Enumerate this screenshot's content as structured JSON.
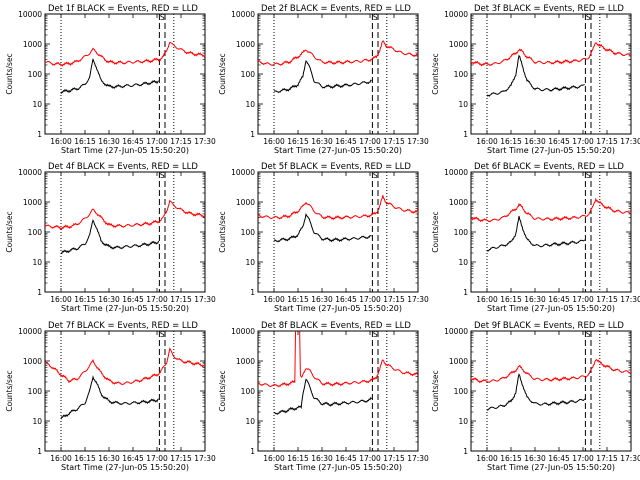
{
  "page": {
    "ylabel": "Counts/sec",
    "xlabel": "Start Time (27-Jun-05 15:50:20)",
    "x_ticks": [
      "16:00",
      "16:15",
      "16:30",
      "16:45",
      "17:00",
      "17:15",
      "17:30"
    ],
    "y_ticks": [
      "1",
      "10",
      "100",
      "1000",
      "10000"
    ],
    "colors": {
      "events": "#000000",
      "lld": "#ff0000",
      "background": "#ffffff"
    }
  },
  "chart_data": [
    {
      "type": "line",
      "detector": "1f",
      "title": "Det 1f BLACK = Events, RED = LLD",
      "xlabel": "Start Time (27-Jun-05 15:50:20)",
      "ylabel": "Counts/sec",
      "ylog": true,
      "ylim": [
        1,
        10000
      ],
      "xlim_min": [
        0,
        100
      ],
      "marker_label": "S",
      "dotted_lines_min": [
        10,
        80.5
      ],
      "dashed_lines_min": [
        71.5,
        75
      ],
      "series": [
        {
          "name": "Events",
          "color": "#000000",
          "x_min": [
            10,
            15,
            20,
            25,
            28,
            30,
            32,
            35,
            40,
            45,
            50,
            55,
            60,
            65,
            70,
            71
          ],
          "y": [
            25,
            28,
            32,
            45,
            80,
            300,
            180,
            60,
            38,
            38,
            40,
            42,
            45,
            50,
            55,
            60
          ]
        },
        {
          "name": "LLD",
          "color": "#ff0000",
          "x_min": [
            0,
            5,
            10,
            15,
            20,
            25,
            28,
            30,
            32,
            35,
            40,
            45,
            50,
            55,
            60,
            65,
            70,
            72,
            74,
            76,
            78,
            80,
            85,
            90,
            95,
            100
          ],
          "y": [
            260,
            220,
            210,
            220,
            260,
            380,
            500,
            650,
            550,
            380,
            250,
            240,
            240,
            250,
            260,
            270,
            300,
            320,
            380,
            600,
            1200,
            900,
            650,
            500,
            450,
            420
          ]
        }
      ]
    },
    {
      "type": "line",
      "detector": "2f",
      "title": "Det 2f BLACK = Events, RED = LLD",
      "xlabel": "Start Time (27-Jun-05 15:50:20)",
      "ylabel": "Counts/sec",
      "ylog": true,
      "ylim": [
        1,
        10000
      ],
      "xlim_min": [
        0,
        100
      ],
      "marker_label": "S",
      "dotted_lines_min": [
        10,
        80.5
      ],
      "dashed_lines_min": [
        71.5,
        75
      ],
      "series": [
        {
          "name": "Events",
          "color": "#000000",
          "x_min": [
            10,
            15,
            20,
            25,
            28,
            30,
            32,
            35,
            40,
            45,
            50,
            55,
            60,
            65,
            70,
            71
          ],
          "y": [
            25,
            28,
            32,
            45,
            80,
            300,
            180,
            60,
            38,
            38,
            40,
            42,
            45,
            50,
            55,
            60
          ]
        },
        {
          "name": "LLD",
          "color": "#ff0000",
          "x_min": [
            0,
            5,
            10,
            15,
            20,
            25,
            28,
            30,
            32,
            35,
            40,
            45,
            50,
            55,
            60,
            65,
            70,
            72,
            74,
            76,
            78,
            80,
            85,
            90,
            95,
            100
          ],
          "y": [
            260,
            220,
            210,
            220,
            260,
            380,
            500,
            650,
            550,
            380,
            250,
            240,
            240,
            250,
            260,
            270,
            300,
            320,
            380,
            600,
            1200,
            900,
            650,
            500,
            450,
            420
          ]
        }
      ]
    },
    {
      "type": "line",
      "detector": "3f",
      "title": "Det 3f BLACK = Events, RED = LLD",
      "xlabel": "Start Time (27-Jun-05 15:50:20)",
      "ylabel": "Counts/sec",
      "ylog": true,
      "ylim": [
        1,
        10000
      ],
      "xlim_min": [
        0,
        100
      ],
      "marker_label": "S",
      "dotted_lines_min": [
        10,
        80.5
      ],
      "dashed_lines_min": [
        71.5,
        75
      ],
      "series": [
        {
          "name": "Events",
          "color": "#000000",
          "x_min": [
            10,
            15,
            20,
            25,
            28,
            30,
            32,
            35,
            40,
            45,
            50,
            55,
            60,
            65,
            70,
            71
          ],
          "y": [
            20,
            22,
            25,
            40,
            100,
            400,
            200,
            60,
            32,
            30,
            30,
            32,
            34,
            36,
            40,
            45
          ]
        },
        {
          "name": "LLD",
          "color": "#ff0000",
          "x_min": [
            0,
            5,
            10,
            15,
            20,
            25,
            28,
            30,
            32,
            35,
            40,
            45,
            50,
            55,
            60,
            65,
            70,
            72,
            74,
            76,
            78,
            80,
            85,
            90,
            95,
            100
          ],
          "y": [
            260,
            220,
            210,
            220,
            260,
            380,
            500,
            650,
            550,
            380,
            250,
            240,
            240,
            250,
            260,
            270,
            300,
            320,
            380,
            600,
            1200,
            900,
            650,
            500,
            450,
            420
          ]
        }
      ]
    },
    {
      "type": "line",
      "detector": "4f",
      "title": "Det 4f BLACK = Events, RED = LLD",
      "xlabel": "Start Time (27-Jun-05 15:50:20)",
      "ylabel": "Counts/sec",
      "ylog": true,
      "ylim": [
        1,
        10000
      ],
      "xlim_min": [
        0,
        100
      ],
      "marker_label": "S",
      "dotted_lines_min": [
        10,
        80.5
      ],
      "dashed_lines_min": [
        71.5,
        75
      ],
      "series": [
        {
          "name": "Events",
          "color": "#000000",
          "x_min": [
            10,
            15,
            20,
            25,
            28,
            30,
            32,
            35,
            40,
            45,
            50,
            55,
            60,
            65,
            70,
            71
          ],
          "y": [
            20,
            24,
            28,
            40,
            80,
            250,
            150,
            50,
            32,
            30,
            32,
            34,
            36,
            40,
            45,
            50
          ]
        },
        {
          "name": "LLD",
          "color": "#ff0000",
          "x_min": [
            0,
            5,
            10,
            15,
            20,
            25,
            28,
            30,
            32,
            35,
            40,
            45,
            50,
            55,
            60,
            65,
            70,
            72,
            74,
            76,
            78,
            80,
            85,
            90,
            95,
            100
          ],
          "y": [
            160,
            150,
            140,
            150,
            180,
            280,
            400,
            550,
            450,
            300,
            170,
            160,
            160,
            170,
            180,
            190,
            220,
            240,
            300,
            500,
            1100,
            800,
            550,
            420,
            380,
            350
          ]
        }
      ]
    },
    {
      "type": "line",
      "detector": "5f",
      "title": "Det 5f BLACK = Events, RED = LLD",
      "xlabel": "Start Time (27-Jun-05 15:50:20)",
      "ylabel": "Counts/sec",
      "ylog": true,
      "ylim": [
        1,
        10000
      ],
      "xlim_min": [
        0,
        100
      ],
      "marker_label": "S",
      "dotted_lines_min": [
        10,
        80.5
      ],
      "dashed_lines_min": [
        71.5,
        75
      ],
      "series": [
        {
          "name": "Events",
          "color": "#000000",
          "x_min": [
            10,
            15,
            20,
            25,
            28,
            30,
            32,
            35,
            40,
            45,
            50,
            55,
            60,
            65,
            70,
            71
          ],
          "y": [
            50,
            55,
            60,
            80,
            150,
            400,
            250,
            100,
            60,
            55,
            55,
            58,
            60,
            65,
            70,
            75
          ]
        },
        {
          "name": "LLD",
          "color": "#ff0000",
          "x_min": [
            0,
            5,
            10,
            15,
            20,
            25,
            28,
            30,
            32,
            35,
            40,
            45,
            50,
            55,
            60,
            65,
            70,
            72,
            74,
            76,
            78,
            80,
            85,
            90,
            95,
            100
          ],
          "y": [
            350,
            320,
            300,
            310,
            350,
            500,
            700,
            1000,
            800,
            500,
            320,
            300,
            300,
            310,
            320,
            330,
            360,
            380,
            450,
            700,
            1500,
            1000,
            700,
            550,
            500,
            460
          ]
        }
      ]
    },
    {
      "type": "line",
      "detector": "6f",
      "title": "Det 6f BLACK = Events, RED = LLD",
      "xlabel": "Start Time (27-Jun-05 15:50:20)",
      "ylabel": "Counts/sec",
      "ylog": true,
      "ylim": [
        1,
        10000
      ],
      "xlim_min": [
        0,
        100
      ],
      "marker_label": "S",
      "dotted_lines_min": [
        10,
        80.5
      ],
      "dashed_lines_min": [
        71.5,
        75
      ],
      "series": [
        {
          "name": "Events",
          "color": "#000000",
          "x_min": [
            10,
            15,
            20,
            25,
            28,
            30,
            32,
            35,
            40,
            45,
            50,
            55,
            60,
            65,
            70,
            71
          ],
          "y": [
            25,
            30,
            35,
            45,
            90,
            300,
            150,
            55,
            35,
            35,
            38,
            40,
            42,
            45,
            50,
            55
          ]
        },
        {
          "name": "LLD",
          "color": "#ff0000",
          "x_min": [
            0,
            5,
            10,
            15,
            20,
            25,
            28,
            30,
            32,
            35,
            40,
            45,
            50,
            55,
            60,
            65,
            70,
            72,
            74,
            76,
            78,
            80,
            85,
            90,
            95,
            100
          ],
          "y": [
            300,
            260,
            240,
            250,
            300,
            450,
            600,
            800,
            650,
            420,
            280,
            270,
            270,
            280,
            290,
            300,
            330,
            350,
            420,
            650,
            1300,
            950,
            650,
            500,
            460,
            430
          ]
        }
      ]
    },
    {
      "type": "line",
      "detector": "7f",
      "title": "Det 7f BLACK = Events, RED = LLD",
      "xlabel": "Start Time (27-Jun-05 15:50:20)",
      "ylabel": "Counts/sec",
      "ylog": true,
      "ylim": [
        1,
        10000
      ],
      "xlim_min": [
        0,
        100
      ],
      "marker_label": "S",
      "dotted_lines_min": [
        10,
        80.5
      ],
      "dashed_lines_min": [
        71.5,
        75
      ],
      "series": [
        {
          "name": "Events",
          "color": "#000000",
          "x_min": [
            10,
            15,
            20,
            25,
            28,
            30,
            32,
            35,
            40,
            45,
            50,
            55,
            60,
            65,
            70,
            71
          ],
          "y": [
            12,
            18,
            25,
            40,
            100,
            300,
            200,
            80,
            45,
            40,
            38,
            40,
            42,
            45,
            50,
            55
          ]
        },
        {
          "name": "LLD",
          "color": "#ff0000",
          "x_min": [
            0,
            5,
            10,
            15,
            20,
            25,
            28,
            30,
            32,
            35,
            40,
            45,
            50,
            55,
            60,
            65,
            70,
            72,
            74,
            76,
            78,
            80,
            85,
            90,
            95,
            100
          ],
          "y": [
            900,
            600,
            350,
            220,
            250,
            450,
            700,
            1000,
            700,
            400,
            220,
            180,
            180,
            200,
            230,
            280,
            350,
            420,
            600,
            900,
            2500,
            1500,
            1000,
            900,
            800,
            700
          ]
        }
      ]
    },
    {
      "type": "line",
      "detector": "8f",
      "title": "Det 8f BLACK = Events, RED = LLD",
      "xlabel": "Start Time (27-Jun-05 15:50:20)",
      "ylabel": "Counts/sec",
      "ylog": true,
      "ylim": [
        1,
        10000
      ],
      "xlim_min": [
        0,
        100
      ],
      "marker_label": "S",
      "dotted_lines_min": [
        10,
        80.5
      ],
      "dashed_lines_min": [
        71.5,
        75
      ],
      "series": [
        {
          "name": "Events",
          "color": "#000000",
          "x_min": [
            10,
            15,
            20,
            25,
            27,
            28,
            30,
            32,
            35,
            40,
            45,
            50,
            55,
            60,
            65,
            70,
            71
          ],
          "y": [
            18,
            20,
            24,
            28,
            28,
            80,
            250,
            150,
            60,
            38,
            36,
            38,
            40,
            42,
            45,
            50,
            55
          ]
        },
        {
          "name": "LLD",
          "color": "#ff0000",
          "x_min": [
            0,
            5,
            10,
            15,
            20,
            23,
            23.5,
            26,
            26.5,
            28,
            30,
            32,
            35,
            40,
            45,
            50,
            55,
            60,
            65,
            70,
            72,
            74,
            76,
            78,
            80,
            85,
            90,
            95,
            100
          ],
          "y": [
            180,
            160,
            150,
            160,
            180,
            200,
            15000,
            15000,
            300,
            350,
            600,
            500,
            300,
            180,
            170,
            170,
            180,
            190,
            200,
            220,
            240,
            300,
            500,
            1100,
            800,
            550,
            420,
            380,
            350
          ]
        }
      ]
    },
    {
      "type": "line",
      "detector": "9f",
      "title": "Det 9f BLACK = Events, RED = LLD",
      "xlabel": "Start Time (27-Jun-05 15:50:20)",
      "ylabel": "Counts/sec",
      "ylog": true,
      "ylim": [
        1,
        10000
      ],
      "xlim_min": [
        0,
        100
      ],
      "marker_label": "S",
      "dotted_lines_min": [
        10,
        80.5
      ],
      "dashed_lines_min": [
        71.5,
        75
      ],
      "series": [
        {
          "name": "Events",
          "color": "#000000",
          "x_min": [
            10,
            15,
            20,
            25,
            28,
            30,
            32,
            35,
            40,
            45,
            50,
            55,
            60,
            65,
            70,
            71
          ],
          "y": [
            25,
            28,
            32,
            45,
            90,
            350,
            180,
            60,
            38,
            36,
            38,
            40,
            42,
            45,
            50,
            55
          ]
        },
        {
          "name": "LLD",
          "color": "#ff0000",
          "x_min": [
            0,
            5,
            10,
            15,
            20,
            25,
            28,
            30,
            32,
            35,
            40,
            45,
            50,
            55,
            60,
            65,
            70,
            72,
            74,
            76,
            78,
            80,
            85,
            90,
            95,
            100
          ],
          "y": [
            260,
            220,
            210,
            220,
            260,
            380,
            500,
            650,
            550,
            380,
            250,
            240,
            240,
            250,
            260,
            270,
            300,
            320,
            380,
            600,
            1200,
            900,
            650,
            500,
            450,
            420
          ]
        }
      ]
    }
  ]
}
